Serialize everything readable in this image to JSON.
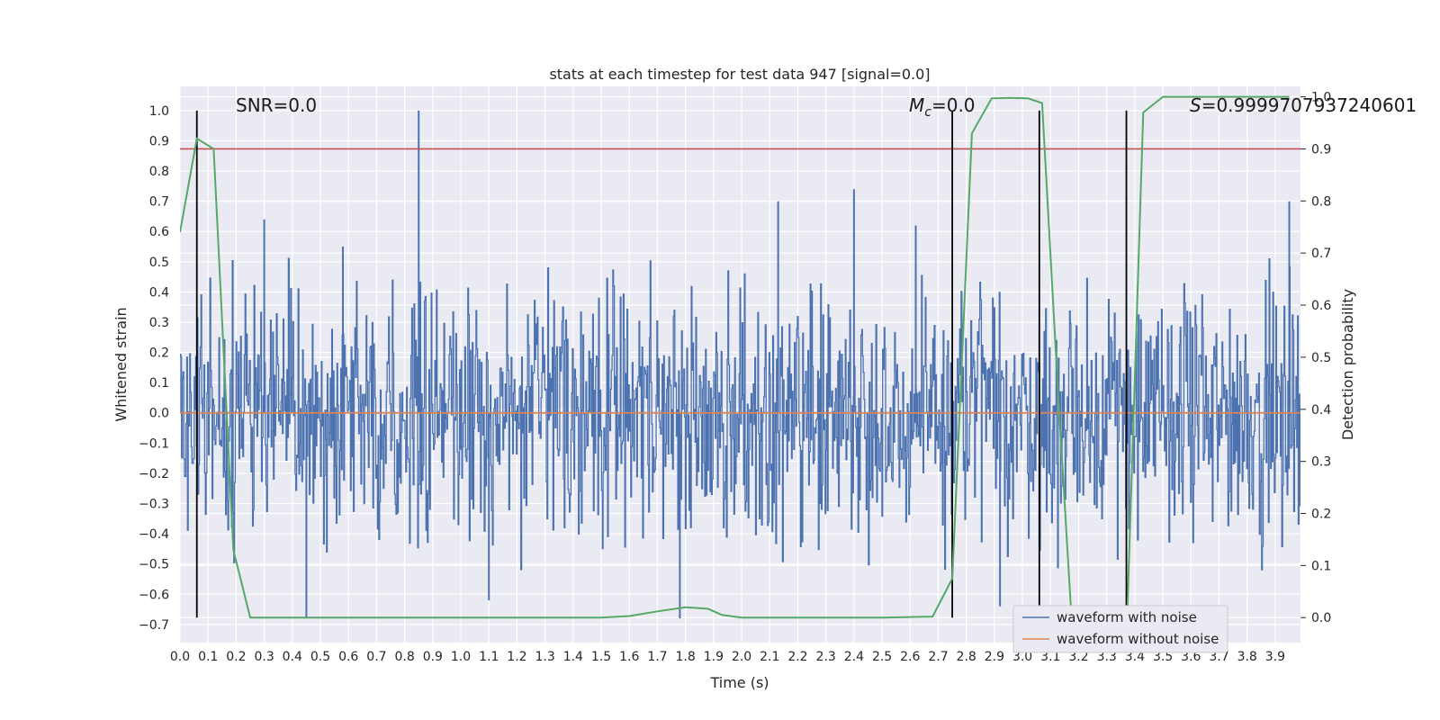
{
  "chart_data": {
    "type": "line",
    "title": "stats at each timestep for test data 947 [signal=0.0]",
    "xlabel": "Time (s)",
    "ylabel": "Whitened strain",
    "y2label": "Detection probability",
    "xlim": [
      0.0,
      3.99
    ],
    "ylim": [
      -0.76,
      1.08
    ],
    "y2lim": [
      -0.048,
      1.02
    ],
    "grid": true,
    "x_ticks": [
      "0.0",
      "0.1",
      "0.2",
      "0.3",
      "0.4",
      "0.5",
      "0.6",
      "0.7",
      "0.8",
      "0.9",
      "1.0",
      "1.1",
      "1.2",
      "1.3",
      "1.4",
      "1.5",
      "1.6",
      "1.7",
      "1.8",
      "1.9",
      "2.0",
      "2.1",
      "2.2",
      "2.3",
      "2.4",
      "2.5",
      "2.6",
      "2.7",
      "2.8",
      "2.9",
      "3.0",
      "3.1",
      "3.2",
      "3.3",
      "3.4",
      "3.5",
      "3.6",
      "3.7",
      "3.8",
      "3.9"
    ],
    "y_ticks": [
      "1.0",
      "0.9",
      "0.8",
      "0.7",
      "0.6",
      "0.5",
      "0.4",
      "0.3",
      "0.2",
      "0.1",
      "0.0",
      "−0.1",
      "−0.2",
      "−0.3",
      "−0.4",
      "−0.5",
      "−0.6",
      "−0.7"
    ],
    "y2_ticks": [
      "1.0",
      "0.9",
      "0.8",
      "0.7",
      "0.6",
      "0.5",
      "0.4",
      "0.3",
      "0.2",
      "0.1",
      "0.0"
    ],
    "annotations": {
      "snr": "SNR=0.0",
      "mc_base": "M",
      "mc_sub": "c",
      "mc_rest": "=0.0",
      "s_label": "S",
      "s_rest": "=0.9999707937240601"
    },
    "legend": {
      "position": "lower-right",
      "entries": [
        "waveform with noise",
        "waveform without noise"
      ]
    },
    "colors": {
      "noise": "#4c72b0",
      "clean": "#dd8452",
      "prob": "#55a868",
      "threshold": "#c44e52",
      "markers": "#000000",
      "plot_bg": "#eaeaf2",
      "grid": "#ffffff"
    },
    "series": [
      {
        "name": "waveform with noise",
        "noise_band": [
          -0.52,
          0.52
        ],
        "spikes": [
          [
            0.85,
            1.0
          ],
          [
            0.3,
            0.64
          ],
          [
            2.4,
            0.74
          ],
          [
            3.95,
            0.7
          ],
          [
            2.13,
            0.7
          ],
          [
            1.78,
            -0.68
          ],
          [
            0.45,
            -0.68
          ],
          [
            1.1,
            -0.62
          ],
          [
            2.92,
            -0.64
          ],
          [
            0.58,
            0.55
          ],
          [
            2.62,
            0.62
          ]
        ]
      },
      {
        "name": "waveform without noise",
        "x": [
          0.0,
          3.99
        ],
        "y": [
          0.0,
          0.0
        ]
      },
      {
        "name": "detection probability",
        "x": [
          0.0,
          0.06,
          0.12,
          0.19,
          0.25,
          0.5,
          1.0,
          1.5,
          1.6,
          1.7,
          1.8,
          1.88,
          1.93,
          2.0,
          2.5,
          2.68,
          2.75,
          2.82,
          2.89,
          2.95,
          3.02,
          3.07,
          3.13,
          3.18,
          3.37,
          3.43,
          3.5,
          3.95
        ],
        "y": [
          0.74,
          0.92,
          0.9,
          0.13,
          0.0,
          0.0,
          0.0,
          0.0,
          0.003,
          0.012,
          0.02,
          0.017,
          0.005,
          0.0,
          0.0,
          0.002,
          0.075,
          0.93,
          0.997,
          0.998,
          0.997,
          0.988,
          0.4,
          -0.05,
          -0.05,
          0.97,
          1.0,
          1.0
        ]
      }
    ],
    "threshold_y2": 0.9,
    "vertical_markers_x": [
      0.06,
      2.75,
      3.06,
      3.37
    ],
    "vertical_markers_top_y": 1.0,
    "vertical_markers_bottom_y2": 0.0
  }
}
